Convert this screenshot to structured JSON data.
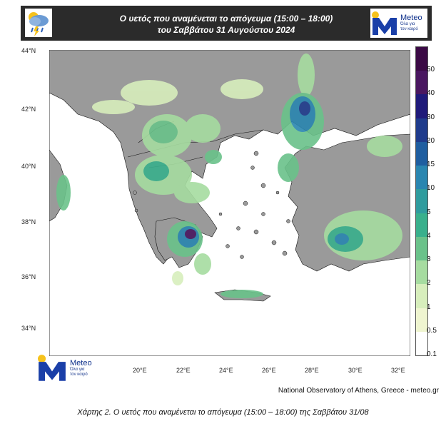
{
  "header": {
    "title_line1": "Ο υετός που αναμένεται το απόγευμα (15:00 – 18:00)",
    "title_line2": "του Σαββάτου 31 Αυγούστου 2024",
    "icon": "rain-cloud-sun-icon"
  },
  "logo": {
    "brand": "Meteo",
    "slogan_line1": "Όλα για",
    "slogan_line2": "τον καιρό",
    "icon": "meteo-logo-icon",
    "colors": {
      "blue": "#1a3fa8",
      "yellow": "#f6c21c"
    }
  },
  "map": {
    "lat_labels": [
      "44°N",
      "42°N",
      "40°N",
      "38°N",
      "36°N",
      "34°N"
    ],
    "lon_labels": [
      "20°E",
      "22°E",
      "24°E",
      "26°E",
      "28°E",
      "30°E",
      "32°E"
    ],
    "colors": {
      "sea": "#ffffff",
      "land": "#9a9a9a"
    }
  },
  "colorbar": {
    "labels": [
      "50",
      "40",
      "30",
      "20",
      "15",
      "10",
      "5",
      "4",
      "3",
      "2",
      "1",
      "0.5",
      "0.1"
    ],
    "colors": [
      "#3b0a45",
      "#4a1760",
      "#1f1a7a",
      "#1f3b8c",
      "#1f5ea0",
      "#2a86b0",
      "#2f9c9e",
      "#39b08c",
      "#6ac28a",
      "#a6dca0",
      "#d7eebc",
      "#eff5d0",
      "#ffffff"
    ]
  },
  "credit": "National Observatory of Athens, Greece - meteo.gr",
  "caption": "Χάρτης 2. Ο υετός που αναμένεται το απόγευμα (15:00 – 18:00) της Σαββάτου 31/08"
}
